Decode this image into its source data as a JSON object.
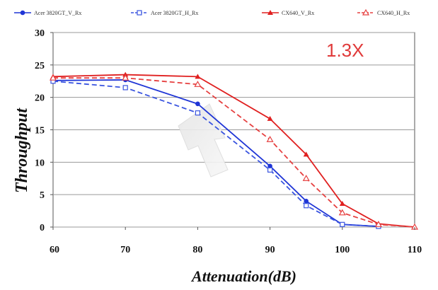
{
  "chart_data": {
    "type": "line",
    "title": "",
    "xlabel": "Attenuation(dB)",
    "ylabel": "Throughput",
    "xlim": [
      60,
      110
    ],
    "ylim": [
      0,
      30
    ],
    "x_ticks": [
      "60",
      "70",
      "80",
      "90",
      "100",
      "110"
    ],
    "y_ticks": [
      "0",
      "5",
      "10",
      "15",
      "20",
      "25",
      "30"
    ],
    "grid": "horizontal",
    "legend_position": "top",
    "annotation": "1.3X",
    "series": [
      {
        "name": "Acer 3820GT_V_Rx",
        "color": "#1f35d6",
        "line_style": "solid",
        "marker": "filled-circle",
        "x": [
          60,
          70,
          80,
          90,
          95,
          100,
          105
        ],
        "y": [
          22.6,
          22.7,
          19.0,
          9.4,
          4.0,
          0.4,
          0.1
        ]
      },
      {
        "name": "Acer 3820GT_H_Rx",
        "color": "#3a55e0",
        "line_style": "dashed",
        "marker": "hollow-square",
        "x": [
          60,
          70,
          80,
          90,
          95,
          100,
          105
        ],
        "y": [
          22.5,
          21.5,
          17.6,
          8.8,
          3.3,
          0.4,
          0.1
        ]
      },
      {
        "name": "CX640_V_Rx",
        "color": "#e02020",
        "line_style": "solid",
        "marker": "filled-triangle",
        "x": [
          60,
          70,
          80,
          90,
          95,
          100,
          105,
          110
        ],
        "y": [
          23.2,
          23.5,
          23.2,
          16.7,
          11.2,
          3.6,
          0.5,
          0.0
        ]
      },
      {
        "name": "CX640_H_Rx",
        "color": "#e64040",
        "line_style": "dashed",
        "marker": "hollow-triangle",
        "x": [
          60,
          70,
          80,
          90,
          95,
          100,
          105,
          110
        ],
        "y": [
          23.0,
          23.0,
          22.0,
          13.5,
          7.5,
          2.2,
          0.4,
          0.0
        ]
      }
    ]
  }
}
